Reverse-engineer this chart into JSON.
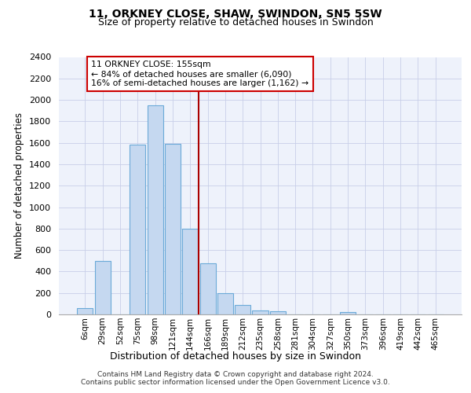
{
  "title": "11, ORKNEY CLOSE, SHAW, SWINDON, SN5 5SW",
  "subtitle": "Size of property relative to detached houses in Swindon",
  "xlabel": "Distribution of detached houses by size in Swindon",
  "ylabel": "Number of detached properties",
  "categories": [
    "6sqm",
    "29sqm",
    "52sqm",
    "75sqm",
    "98sqm",
    "121sqm",
    "144sqm",
    "166sqm",
    "189sqm",
    "212sqm",
    "235sqm",
    "258sqm",
    "281sqm",
    "304sqm",
    "327sqm",
    "350sqm",
    "373sqm",
    "396sqm",
    "419sqm",
    "442sqm",
    "465sqm"
  ],
  "values": [
    60,
    500,
    0,
    1580,
    1950,
    1590,
    800,
    480,
    195,
    90,
    35,
    30,
    0,
    0,
    0,
    25,
    0,
    0,
    0,
    0,
    0
  ],
  "bar_color": "#c5d8f0",
  "bar_edge_color": "#6baad8",
  "annotation_line1": "11 ORKNEY CLOSE: 155sqm",
  "annotation_line2": "← 84% of detached houses are smaller (6,090)",
  "annotation_line3": "16% of semi-detached houses are larger (1,162) →",
  "vline_color": "#aa0000",
  "box_edge_color": "#cc0000",
  "ylim": [
    0,
    2400
  ],
  "yticks": [
    0,
    200,
    400,
    600,
    800,
    1000,
    1200,
    1400,
    1600,
    1800,
    2000,
    2200,
    2400
  ],
  "vline_x": 6.5,
  "footer1": "Contains HM Land Registry data © Crown copyright and database right 2024.",
  "footer2": "Contains public sector information licensed under the Open Government Licence v3.0.",
  "bg_color": "#eef2fb",
  "grid_color": "#c8cfe8",
  "title_fontsize": 10,
  "subtitle_fontsize": 9
}
